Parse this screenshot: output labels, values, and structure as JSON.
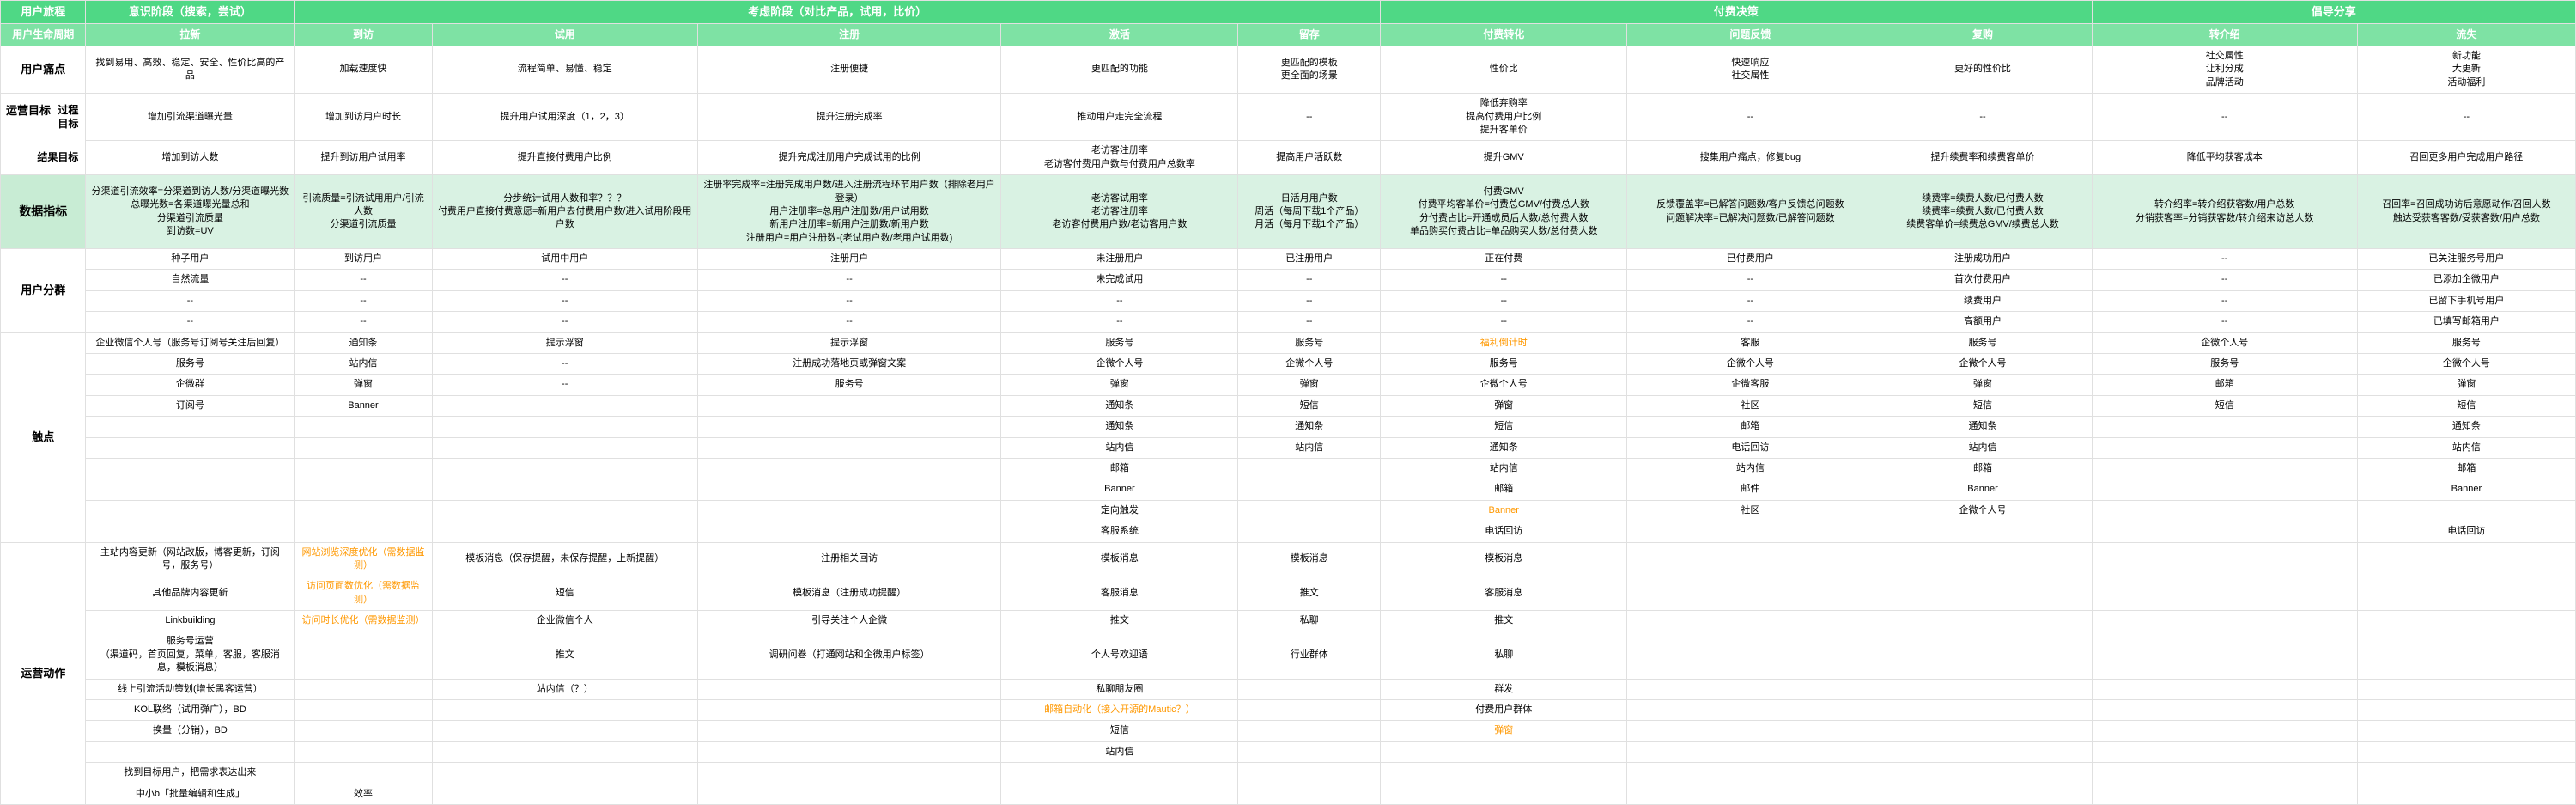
{
  "colors": {
    "header1_bg": "#4fd885",
    "header2_bg": "#7ee2a4",
    "header_fg": "#ffffff",
    "metrics_bg": "#d9f2e3",
    "metrics_label_bg": "#c8ecd4",
    "highlight_fg": "#ff9800",
    "border": "#e0e0e0"
  },
  "header_row1": {
    "c0": "用户旅程",
    "c1": "意识阶段（搜索，尝试）",
    "c2": "考虑阶段（对比产品，试用，比价）",
    "c3": "付费决策",
    "c4": "倡导分享"
  },
  "header_row2": {
    "c0": "用户生命周期",
    "c1": "拉新",
    "c2": "到访",
    "c3": "试用",
    "c4": "注册",
    "c5": "激活",
    "c6": "留存",
    "c7": "付费转化",
    "c8": "问题反馈",
    "c9": "复购",
    "c10": "转介绍",
    "c11": "流失"
  },
  "pain": {
    "label": "用户痛点",
    "c1": "找到易用、高效、稳定、安全、性价比高的产品",
    "c2": "加载速度快",
    "c3": "流程简单、易懂、稳定",
    "c4": "注册便捷",
    "c5": "更匹配的功能",
    "c6": "更匹配的模板\n更全面的场景",
    "c7": "性价比",
    "c8": "快速响应\n社交属性",
    "c9": "更好的性价比",
    "c10": "社交属性\n让利分成\n品牌活动",
    "c11": "新功能\n大更新\n活动福利"
  },
  "goal": {
    "label": "运营目标",
    "proc_label": "过程目标",
    "proc": {
      "c1": "增加引流渠道曝光量",
      "c2": "增加到访用户时长",
      "c3": "提升用户试用深度（1，2，3）",
      "c4": "提升注册完成率",
      "c5": "推动用户走完全流程",
      "c6": "--",
      "c7": "降低弃购率\n提高付费用户比例\n提升客单价",
      "c8": "--",
      "c9": "--",
      "c10": "--",
      "c11": "--"
    },
    "res_label": "结果目标",
    "res": {
      "c1": "增加到访人数",
      "c2": "提升到访用户试用率",
      "c3": "提升直接付费用户比例",
      "c4": "提升完成注册用户完成试用的比例",
      "c5": "老访客注册率\n老访客付费用户数与付费用户总数率",
      "c6": "提高用户活跃数",
      "c7": "提升GMV",
      "c8": "搜集用户痛点，修复bug",
      "c9": "提升续费率和续费客单价",
      "c10": "降低平均获客成本",
      "c11": "召回更多用户完成用户路径"
    }
  },
  "metrics": {
    "label": "数据指标",
    "c1": "分渠道引流效率=分渠道到访人数/分渠道曝光数\n总曝光数=各渠道曝光量总和\n分渠道引流质量\n到访数=UV",
    "c2": "引流质量=引流试用用户/引流人数\n分渠道引流质量",
    "c3": "分步统计试用人数和率？？？\n付费用户直接付费意愿=新用户去付费用户数/进入试用阶段用户数",
    "c4": "注册率完成率=注册完成用户数/进入注册流程环节用户数（排除老用户登录）\n用户注册率=总用户注册数/用户试用数\n新用户注册率=新用户注册数/新用户数\n注册用户=用户注册数-(老试用户数/老用户试用数)",
    "c5": "老访客试用率\n老访客注册率\n老访客付费用户数/老访客用户数",
    "c6": "日活月用户数\n周活（每周下载1个产品）\n月活（每月下载1个产品）",
    "c7": "付费GMV\n付费平均客单价=付费总GMV/付费总人数\n分付费占比=开通成员后人数/总付费人数\n单品购买付费占比=单品购买人数/总付费人数",
    "c8": "反馈覆盖率=已解答问题数/客户反馈总问题数\n问题解决率=已解决问题数/已解答问题数",
    "c9": "续费率=续费人数/已付费人数\n续费率=续费人数/已付费人数\n续费客单价=续费总GMV/续费总人数",
    "c10": "转介绍率=转介绍获客数/用户总数\n分销获客率=分销获客数/转介绍来访总人数",
    "c11": "召回率=召回成功访后意愿动作/召回人数\n触达受获客客数/受获客数/用户总数"
  },
  "segments": {
    "label": "用户分群",
    "r": [
      {
        "c1": "种子用户",
        "c2": "到访用户",
        "c3": "试用中用户",
        "c4": "注册用户",
        "c5": "未注册用户",
        "c6": "已注册用户",
        "c7": "正在付费",
        "c8": "已付费用户",
        "c9": "注册成功用户",
        "c10": "--",
        "c11": "已关注服务号用户"
      },
      {
        "c1": "自然流量",
        "c2": "--",
        "c3": "--",
        "c4": "--",
        "c5": "未完成试用",
        "c6": "--",
        "c7": "--",
        "c8": "--",
        "c9": "首次付费用户",
        "c10": "--",
        "c11": "已添加企微用户"
      },
      {
        "c1": "--",
        "c2": "--",
        "c3": "--",
        "c4": "--",
        "c5": "--",
        "c6": "--",
        "c7": "--",
        "c8": "--",
        "c9": "续费用户",
        "c10": "--",
        "c11": "已留下手机号用户"
      },
      {
        "c1": "--",
        "c2": "--",
        "c3": "--",
        "c4": "--",
        "c5": "--",
        "c6": "--",
        "c7": "--",
        "c8": "--",
        "c9": "高额用户",
        "c10": "--",
        "c11": "已填写邮箱用户"
      }
    ]
  },
  "touch": {
    "label": "触点",
    "r": [
      {
        "c1": "企业微信个人号（服务号订阅号关注后回复）",
        "c2": "通知条",
        "c3": "提示浮窗",
        "c4": "提示浮窗",
        "c5": "服务号",
        "c6": "服务号",
        "c7": "福利倒计时",
        "c7_orange": true,
        "c8": "客服",
        "c9": "服务号",
        "c10": "企微个人号",
        "c11": "服务号"
      },
      {
        "c1": "服务号",
        "c2": "站内信",
        "c3": "--",
        "c4": "注册成功落地页或弹窗文案",
        "c5": "企微个人号",
        "c6": "企微个人号",
        "c7": "服务号",
        "c8": "企微个人号",
        "c9": "企微个人号",
        "c10": "服务号",
        "c11": "企微个人号"
      },
      {
        "c1": "企微群",
        "c2": "弹窗",
        "c3": "--",
        "c4": "服务号",
        "c5": "弹窗",
        "c6": "弹窗",
        "c7": "企微个人号",
        "c8": "企微客服",
        "c9": "弹窗",
        "c10": "邮箱",
        "c11": "弹窗"
      },
      {
        "c1": "订阅号",
        "c2": "Banner",
        "c3": "",
        "c4": "",
        "c5": "通知条",
        "c6": "短信",
        "c7": "弹窗",
        "c8": "社区",
        "c9": "短信",
        "c10": "短信",
        "c11": "短信"
      },
      {
        "c1": "",
        "c2": "",
        "c3": "",
        "c4": "",
        "c5": "通知条",
        "c6": "通知条",
        "c7": "短信",
        "c8": "邮箱",
        "c9": "通知条",
        "c10": "",
        "c11": "通知条"
      },
      {
        "c1": "",
        "c2": "",
        "c3": "",
        "c4": "",
        "c5": "站内信",
        "c6": "站内信",
        "c7": "通知条",
        "c8": "电话回访",
        "c9": "站内信",
        "c10": "",
        "c11": "站内信"
      },
      {
        "c1": "",
        "c2": "",
        "c3": "",
        "c4": "",
        "c5": "邮箱",
        "c6": "",
        "c7": "站内信",
        "c8": "站内信",
        "c9": "邮箱",
        "c10": "",
        "c11": "邮箱"
      },
      {
        "c1": "",
        "c2": "",
        "c3": "",
        "c4": "",
        "c5": "Banner",
        "c6": "",
        "c7": "邮箱",
        "c8": "邮件",
        "c9": "Banner",
        "c10": "",
        "c11": "Banner"
      },
      {
        "c1": "",
        "c2": "",
        "c3": "",
        "c4": "",
        "c5": "定向触发",
        "c6": "",
        "c7": "Banner",
        "c7_orange": true,
        "c8": "社区",
        "c9": "企微个人号",
        "c10": "",
        "c11": ""
      },
      {
        "c1": "",
        "c2": "",
        "c3": "",
        "c4": "",
        "c5": "客服系统",
        "c6": "",
        "c7": "电话回访",
        "c8": "",
        "c9": "",
        "c10": "",
        "c11": "电话回访"
      }
    ]
  },
  "ops": {
    "label": "运营动作",
    "r": [
      {
        "c1": "主站内容更新（网站改版，博客更新，订阅号，服务号）",
        "c2": "网站浏览深度优化（需数据监测）",
        "c2_orange": true,
        "c3": "模板消息（保存提醒，未保存提醒，上新提醒）",
        "c4": "注册相关回访",
        "c5": "模板消息",
        "c6": "模板消息",
        "c7": "模板消息",
        "c8": "",
        "c9": "",
        "c10": "",
        "c11": ""
      },
      {
        "c1": "其他品牌内容更新",
        "c2": "访问页面数优化（需数据监测）",
        "c2_orange": true,
        "c3": "短信",
        "c4": "模板消息（注册成功提醒）",
        "c5": "客服消息",
        "c6": "推文",
        "c7": "客服消息",
        "c8": "",
        "c9": "",
        "c10": "",
        "c11": ""
      },
      {
        "c1": "Linkbuilding",
        "c2": "访问时长优化（需数据监测）",
        "c2_orange": true,
        "c3": "企业微信个人",
        "c4": "引导关注个人企微",
        "c5": "推文",
        "c6": "私聊",
        "c7": "推文",
        "c8": "",
        "c9": "",
        "c10": "",
        "c11": ""
      },
      {
        "c1": "服务号运营\n（渠道码，首页回复，菜单，客服，客服消息，模板消息）",
        "c2": "",
        "c3": "推文",
        "c4": "调研问卷（打通网站和企微用户标签）",
        "c5": "个人号欢迎语",
        "c6": "行业群体",
        "c7": "私聊",
        "c8": "",
        "c9": "",
        "c10": "",
        "c11": ""
      },
      {
        "c1": "线上引流活动策划(增长黑客运营）",
        "c2": "",
        "c3": "站内信（？）",
        "c4": "",
        "c5": "私聊朋友圈",
        "c6": "",
        "c7": "群发",
        "c8": "",
        "c9": "",
        "c10": "",
        "c11": ""
      },
      {
        "c1": "KOL联络（试用弹广），BD",
        "c2": "",
        "c3": "",
        "c4": "",
        "c5": "邮箱自动化（接入开源的Mautic？）",
        "c5_orange": true,
        "c6": "",
        "c7": "付费用户群体",
        "c8": "",
        "c9": "",
        "c10": "",
        "c11": ""
      },
      {
        "c1": "换量（分销），BD",
        "c2": "",
        "c3": "",
        "c4": "",
        "c5": "短信",
        "c6": "",
        "c7": "弹窗",
        "c7_orange": true,
        "c8": "",
        "c9": "",
        "c10": "",
        "c11": ""
      },
      {
        "c1": "",
        "c2": "",
        "c3": "",
        "c4": "",
        "c5": "站内信",
        "c6": "",
        "c7": "",
        "c8": "",
        "c9": "",
        "c10": "",
        "c11": ""
      },
      {
        "c1": "找到目标用户，把需求表达出来",
        "c2": "",
        "c3": "",
        "c4": "",
        "c5": "",
        "c6": "",
        "c7": "",
        "c8": "",
        "c9": "",
        "c10": "",
        "c11": ""
      },
      {
        "c1": "中小b「批量编辑和生成」",
        "c2": "效率",
        "c3": "",
        "c4": "",
        "c5": "",
        "c6": "",
        "c7": "",
        "c8": "",
        "c9": "",
        "c10": "",
        "c11": ""
      }
    ]
  }
}
